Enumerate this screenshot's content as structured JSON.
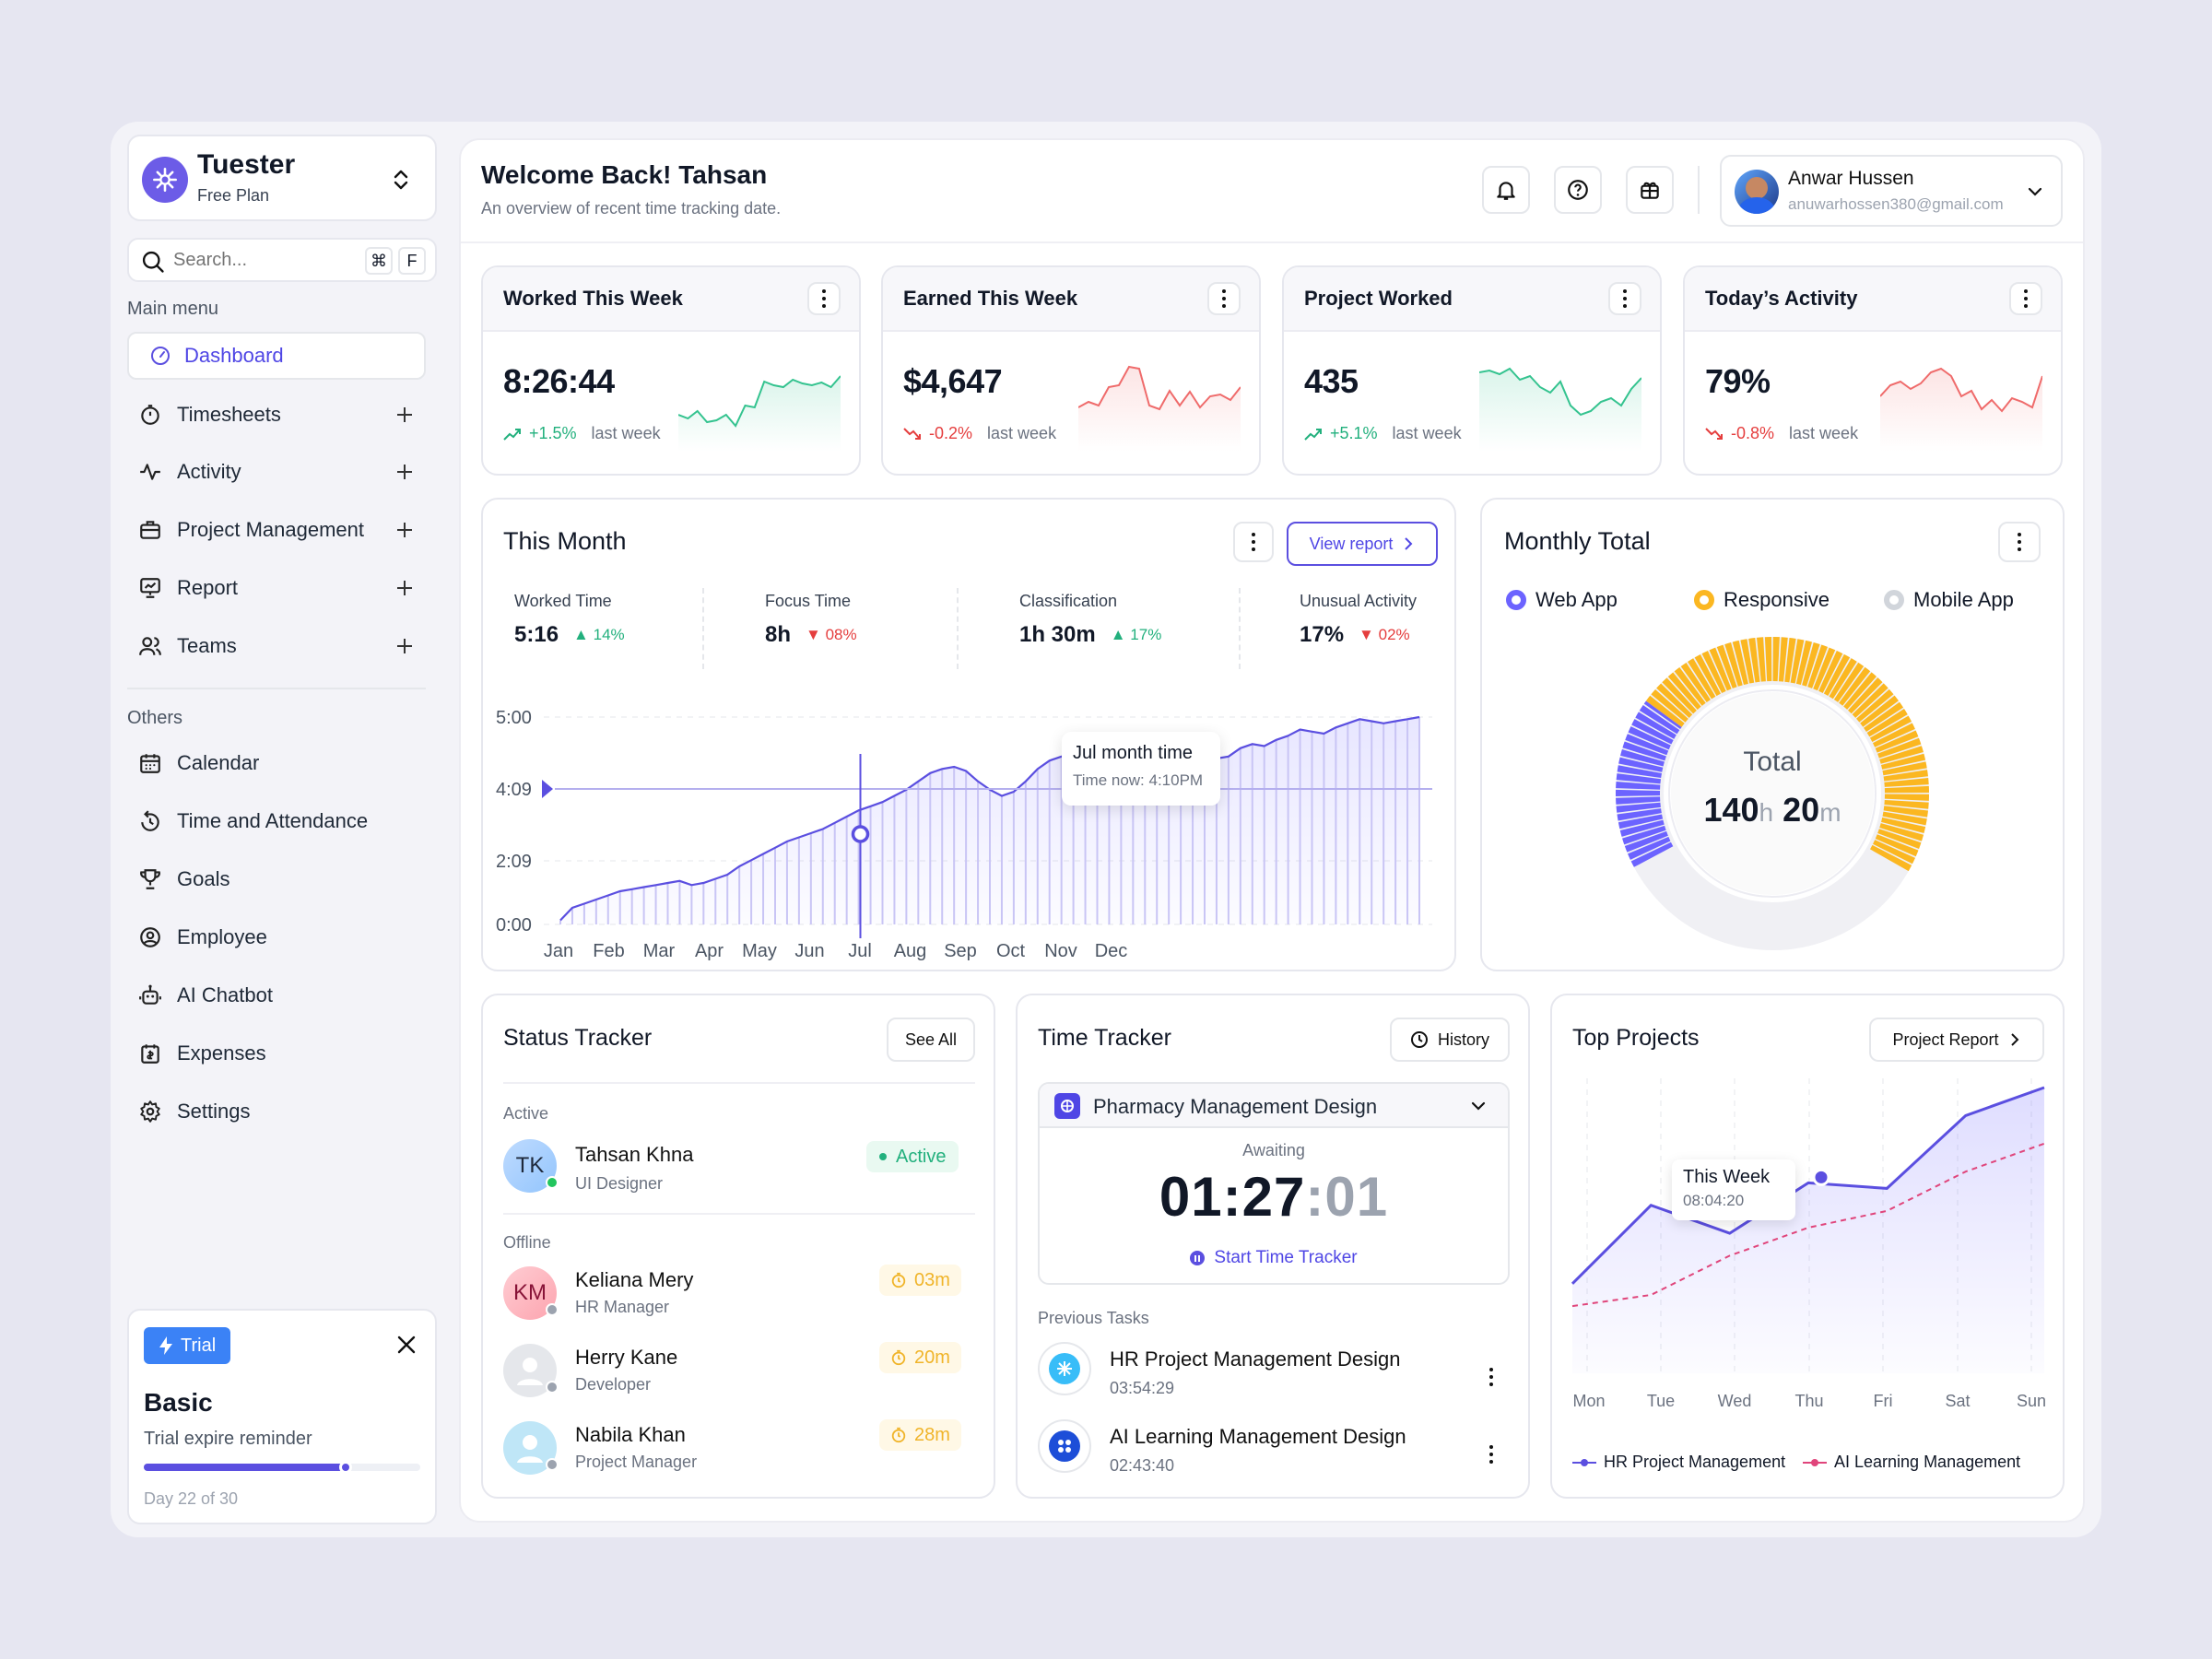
{
  "brand": {
    "name": "Tuester",
    "plan": "Free Plan"
  },
  "search": {
    "placeholder": "Search...",
    "shortcut_cmd": "⌘",
    "shortcut_key": "F"
  },
  "sidebar": {
    "main_menu_label": "Main menu",
    "main_items": [
      {
        "label": "Dashboard",
        "icon": "dashboard-icon",
        "active": true
      },
      {
        "label": "Timesheets",
        "icon": "stopwatch-icon"
      },
      {
        "label": "Activity",
        "icon": "pulse-icon"
      },
      {
        "label": "Project Management",
        "icon": "briefcase-icon"
      },
      {
        "label": "Report",
        "icon": "presentation-icon"
      },
      {
        "label": "Teams",
        "icon": "users-icon"
      }
    ],
    "others_label": "Others",
    "other_items": [
      {
        "label": "Calendar",
        "icon": "calendar-icon"
      },
      {
        "label": "Time and Attendance",
        "icon": "clock-refresh-icon"
      },
      {
        "label": "Goals",
        "icon": "trophy-icon"
      },
      {
        "label": "Employee",
        "icon": "user-circle-icon"
      },
      {
        "label": "AI Chatbot",
        "icon": "robot-icon"
      },
      {
        "label": "Expenses",
        "icon": "receipt-icon"
      },
      {
        "label": "Settings",
        "icon": "gear-icon"
      }
    ],
    "trial": {
      "badge": "Trial",
      "title": "Basic",
      "subtitle": "Trial expire reminder",
      "progress": 0.733,
      "day_text": "Day 22 of 30"
    }
  },
  "header": {
    "title": "Welcome Back! Tahsan",
    "subtitle": "An overview of recent time tracking date.",
    "user_name": "Anwar Hussen",
    "user_email": "anuwarhossen380@gmail.com"
  },
  "stats": [
    {
      "title": "Worked This Week",
      "value": "8:26:44",
      "change": "+1.5%",
      "period": "last week",
      "dir": "up",
      "spark": [
        20,
        16,
        24,
        12,
        14,
        20,
        8,
        30,
        28,
        56,
        52,
        50,
        58,
        54,
        52,
        55,
        50,
        62
      ]
    },
    {
      "title": "Earned This Week",
      "value": "$4,647",
      "change": "-0.2%",
      "period": "last week",
      "dir": "down",
      "spark": [
        28,
        34,
        30,
        50,
        52,
        72,
        70,
        30,
        26,
        46,
        30,
        45,
        28,
        40,
        42,
        36,
        50
      ]
    },
    {
      "title": "Project Worked",
      "value": "435",
      "change": "+5.1%",
      "period": "last week",
      "dir": "up",
      "spark": [
        66,
        68,
        64,
        70,
        58,
        62,
        50,
        44,
        56,
        30,
        20,
        24,
        34,
        38,
        30,
        48,
        60
      ]
    },
    {
      "title": "Today’s Activity",
      "value": "79%",
      "change": "-0.8%",
      "period": "last week",
      "dir": "down",
      "spark": [
        40,
        52,
        56,
        48,
        54,
        66,
        70,
        62,
        40,
        46,
        26,
        36,
        24,
        38,
        34,
        28,
        62
      ]
    }
  ],
  "this_month": {
    "title": "This Month",
    "view_report": "View report",
    "metrics": [
      {
        "label": "Worked Time",
        "value": "5:16",
        "change": "14%",
        "dir": "up"
      },
      {
        "label": "Focus Time",
        "value": "8h",
        "change": "08%",
        "dir": "down"
      },
      {
        "label": "Classification",
        "value": "1h 30m",
        "change": "17%",
        "dir": "up"
      },
      {
        "label": "Unusual Activity",
        "value": "17%",
        "change": "02%",
        "dir": "down"
      }
    ],
    "tooltip_title": "Jul month time",
    "tooltip_sub": "Time now: 4:10PM"
  },
  "chart_data": [
    {
      "type": "area",
      "title": "This Month",
      "x_ticks": [
        "Jan",
        "Feb",
        "Mar",
        "Apr",
        "May",
        "Jun",
        "Jul",
        "Aug",
        "Sep",
        "Oct",
        "Nov",
        "Dec"
      ],
      "y_ticks": [
        "5:00",
        "4:09",
        "2:09",
        "0:00"
      ],
      "ylim": [
        0,
        5
      ],
      "grid": true,
      "highlight": {
        "x": "Jul",
        "y": "4:09"
      },
      "series": [
        {
          "values": [
            0.1,
            0.4,
            0.5,
            0.6,
            0.7,
            0.8,
            0.85,
            0.9,
            0.95,
            1.0,
            1.05,
            0.95,
            1.0,
            1.1,
            1.2,
            1.4,
            1.55,
            1.7,
            1.85,
            2.0,
            2.1,
            2.2,
            2.3,
            2.45,
            2.6,
            2.75,
            2.85,
            2.95,
            3.1,
            3.25,
            3.45,
            3.65,
            3.75,
            3.8,
            3.7,
            3.45,
            3.25,
            3.1,
            3.2,
            3.45,
            3.75,
            3.95,
            4.05,
            4.1,
            4.05,
            3.95,
            3.85,
            3.7,
            3.6,
            3.55,
            3.7,
            3.95,
            4.1,
            4.15,
            4.1,
            4.0,
            4.05,
            4.25,
            4.35,
            4.3,
            4.45,
            4.55,
            4.7,
            4.65,
            4.6,
            4.75,
            4.85,
            4.95,
            4.9,
            4.85,
            4.9,
            4.95,
            5.0
          ]
        }
      ]
    },
    {
      "type": "pie",
      "title": "Monthly Total",
      "series": [
        {
          "name": "Web App",
          "color": "#6c63ff",
          "value": 27
        },
        {
          "name": "Responsive",
          "color": "#fbb721",
          "value": 73
        },
        {
          "name": "Mobile App",
          "color": "#e5e7eb",
          "value": 0
        }
      ]
    },
    {
      "type": "line",
      "title": "Top Projects",
      "categories": [
        "Mon",
        "Tue",
        "Wed",
        "Thu",
        "Fri",
        "Sat",
        "Sun"
      ],
      "series": [
        {
          "name": "HR Project Management",
          "color": "#5b4fe0",
          "values": [
            30,
            58,
            48,
            66,
            64,
            90,
            100
          ]
        },
        {
          "name": "AI Learning Management",
          "color": "#e0457b",
          "values": [
            22,
            26,
            40,
            50,
            56,
            70,
            80
          ]
        }
      ],
      "tooltip": {
        "label": "This Week",
        "value": "08:04:20"
      }
    }
  ],
  "monthly_total": {
    "title": "Monthly Total",
    "center_label": "Total",
    "hours": "140",
    "hours_unit": "h",
    "minutes": "20",
    "minutes_unit": "m"
  },
  "status_tracker": {
    "title": "Status Tracker",
    "see_all": "See All",
    "active_label": "Active",
    "offline_label": "Offline",
    "active": [
      {
        "initials": "TK",
        "name": "Tahsan Khna",
        "role": "UI Designer",
        "status": "Active"
      }
    ],
    "offline": [
      {
        "initials": "KM",
        "name": "Keliana Mery",
        "role": "HR Manager",
        "time": "03m"
      },
      {
        "initials": "",
        "name": "Herry Kane",
        "role": "Developer",
        "time": "20m"
      },
      {
        "initials": "",
        "name": "Nabila Khan",
        "role": "Project Manager",
        "time": "28m"
      }
    ]
  },
  "time_tracker": {
    "title": "Time Tracker",
    "history": "History",
    "project": "Pharmacy Management Design",
    "awaiting": "Awaiting",
    "time_main": "01:27",
    "time_sec": ":01",
    "start": "Start Time Tracker",
    "previous_label": "Previous Tasks",
    "tasks": [
      {
        "name": "HR Project Management Design",
        "time": "03:54:29"
      },
      {
        "name": "AI Learning Management Design",
        "time": "02:43:40"
      }
    ]
  },
  "top_projects": {
    "title": "Top Projects",
    "report_button": "Project Report"
  }
}
